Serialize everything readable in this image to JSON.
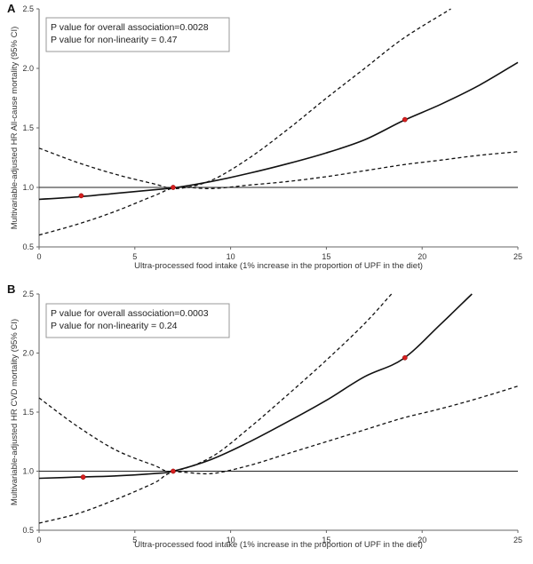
{
  "chart_data": [
    {
      "type": "line",
      "panel_label": "A",
      "xlabel": "Ultra-processed food intake (1% increase in the proportion of UPF in the diet)",
      "ylabel": "Multivariable-adjusted HR All-cause mortality (95% CI)",
      "xlim": [
        0,
        25
      ],
      "ylim": [
        0.5,
        2.5
      ],
      "x_ticks": [
        "0",
        "5",
        "10",
        "15",
        "20",
        "25"
      ],
      "y_ticks": [
        "0.5",
        "1.0",
        "1.5",
        "2.0",
        "2.5"
      ],
      "reference_line": 1.0,
      "annotations": [
        "P value for overall association=0.0028",
        "P value for non-linearity = 0.47"
      ],
      "series": [
        {
          "style": "solid",
          "x": [
            0,
            2,
            4,
            6,
            7.2,
            9,
            11,
            13,
            15,
            17,
            19,
            21,
            23,
            25
          ],
          "values": [
            0.9,
            0.92,
            0.95,
            0.98,
            1.0,
            1.05,
            1.12,
            1.2,
            1.29,
            1.4,
            1.56,
            1.7,
            1.86,
            2.05
          ]
        },
        {
          "style": "dashed",
          "x": [
            0,
            2,
            4,
            6,
            7.2,
            9,
            11,
            13,
            15,
            17,
            19,
            21,
            23,
            25
          ],
          "values": [
            0.6,
            0.69,
            0.8,
            0.93,
            1.0,
            0.99,
            1.02,
            1.05,
            1.09,
            1.14,
            1.19,
            1.23,
            1.27,
            1.3
          ]
        },
        {
          "style": "dashed",
          "x": [
            0,
            2,
            4,
            6,
            7.2,
            9,
            11,
            13,
            15,
            17,
            19,
            21.5
          ],
          "values": [
            1.33,
            1.21,
            1.11,
            1.03,
            0.99,
            1.06,
            1.25,
            1.49,
            1.75,
            2.0,
            2.25,
            2.5
          ]
        }
      ],
      "points": [
        {
          "x": 2.2,
          "y": 0.93
        },
        {
          "x": 7.0,
          "y": 1.0
        },
        {
          "x": 19.1,
          "y": 1.57
        }
      ]
    },
    {
      "type": "line",
      "panel_label": "B",
      "xlabel": "Ultra-processed food intake (1% increase in the proportion of UPF in the diet)",
      "ylabel": "Multivariable-adjusted HR CVD mortality (95% CI)",
      "xlim": [
        0,
        25
      ],
      "ylim": [
        0.5,
        2.5
      ],
      "x_ticks": [
        "0",
        "5",
        "10",
        "15",
        "20",
        "25"
      ],
      "y_ticks": [
        "0.5",
        "1.0",
        "1.5",
        "2.0",
        "2.5"
      ],
      "reference_line": 1.0,
      "annotations": [
        "P value for overall association=0.0003",
        "P value for non-linearity = 0.24"
      ],
      "series": [
        {
          "style": "solid",
          "x": [
            0,
            2,
            4,
            6,
            7,
            9,
            11,
            13,
            15,
            17,
            19,
            21,
            22.6
          ],
          "values": [
            0.94,
            0.95,
            0.96,
            0.98,
            1.0,
            1.1,
            1.25,
            1.42,
            1.6,
            1.8,
            1.95,
            2.25,
            2.5
          ]
        },
        {
          "style": "dashed",
          "x": [
            0,
            2,
            4,
            6,
            7,
            9,
            11,
            13,
            15,
            17,
            19,
            21,
            23,
            25
          ],
          "values": [
            0.56,
            0.64,
            0.76,
            0.9,
            0.99,
            0.98,
            1.05,
            1.15,
            1.25,
            1.35,
            1.45,
            1.53,
            1.62,
            1.72
          ]
        },
        {
          "style": "dashed",
          "x": [
            0,
            2,
            4,
            6,
            7,
            9,
            11,
            13,
            15,
            17,
            18.4
          ],
          "values": [
            1.62,
            1.38,
            1.18,
            1.05,
            1.0,
            1.12,
            1.37,
            1.65,
            1.94,
            2.25,
            2.5
          ]
        }
      ],
      "points": [
        {
          "x": 2.3,
          "y": 0.95
        },
        {
          "x": 7.0,
          "y": 1.0
        },
        {
          "x": 19.1,
          "y": 1.96
        }
      ]
    }
  ]
}
